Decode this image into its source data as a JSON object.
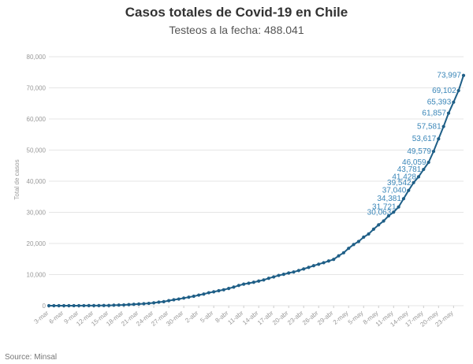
{
  "chart_data": {
    "type": "line",
    "title": "Casos totales de Covid-19 en Chile",
    "subtitle": "Testeos a la fecha: 488.041",
    "ylabel": "Total de casos",
    "xlabel": "",
    "source": "Source: Minsal",
    "ylim": [
      0,
      80000
    ],
    "yticks": [
      "0",
      "10,000",
      "20,000",
      "30,000",
      "40,000",
      "50,000",
      "60,000",
      "70,000",
      "80,000"
    ],
    "grid": "horizontal",
    "legend": "none",
    "x_tick_labels": [
      "3-mar",
      "6-mar",
      "9-mar",
      "12-mar",
      "15-mar",
      "18-mar",
      "21-mar",
      "24-mar",
      "27-mar",
      "30-mar",
      "2-abr",
      "5-abr",
      "8-abr",
      "11-abr",
      "14-abr",
      "17-abr",
      "20-abr",
      "23-abr",
      "26-abr",
      "29-abr",
      "2-may",
      "5-may",
      "8-may",
      "11-may",
      "14-may",
      "17-may",
      "20-may",
      "23-may"
    ],
    "series": [
      {
        "start_date": "3-mar",
        "values": [
          1,
          1,
          4,
          5,
          7,
          10,
          13,
          17,
          23,
          33,
          43,
          61,
          75,
          155,
          201,
          238,
          342,
          434,
          537,
          632,
          746,
          922,
          1142,
          1306,
          1610,
          1909,
          2139,
          2449,
          2738,
          3031,
          3404,
          3737,
          4161,
          4471,
          4815,
          5116,
          5546,
          5972,
          6501,
          6927,
          7213,
          7525,
          7917,
          8273,
          8807,
          9252,
          9730,
          10088,
          10507,
          10832,
          11296,
          11812,
          12306,
          12858,
          13331,
          13813,
          14365,
          14885,
          16023,
          17008,
          18435,
          19663,
          20643,
          22016,
          23048,
          24581,
          25972,
          27219,
          28866,
          30063,
          31721,
          34381,
          37040,
          39542,
          41428,
          43781,
          46059,
          49579,
          53617,
          57581,
          61857,
          65393,
          69102,
          73997
        ],
        "point_labels": [
          "",
          "",
          "",
          "",
          "",
          "",
          "",
          "",
          "",
          "",
          "",
          "",
          "",
          "",
          "",
          "",
          "",
          "",
          "",
          "",
          "",
          "",
          "",
          "",
          "",
          "",
          "",
          "",
          "",
          "",
          "",
          "",
          "",
          "",
          "",
          "",
          "",
          "",
          "",
          "",
          "",
          "",
          "",
          "",
          "",
          "",
          "",
          "",
          "",
          "",
          "",
          "",
          "",
          "",
          "",
          "",
          "",
          "",
          "",
          "",
          "",
          "",
          "",
          "",
          "",
          "",
          "",
          "",
          "",
          "30,063",
          "31,721",
          "34,381",
          "37,040",
          "39,542",
          "41,428",
          "43,781",
          "46,059",
          "49,579",
          "53,617",
          "57,581",
          "61,857",
          "65,393",
          "69,102",
          "73,997"
        ]
      }
    ],
    "colors": {
      "line": "#1f5f87",
      "label": "#3a86b8",
      "grid": "#e6e6e6",
      "axis_text": "#999999"
    }
  }
}
